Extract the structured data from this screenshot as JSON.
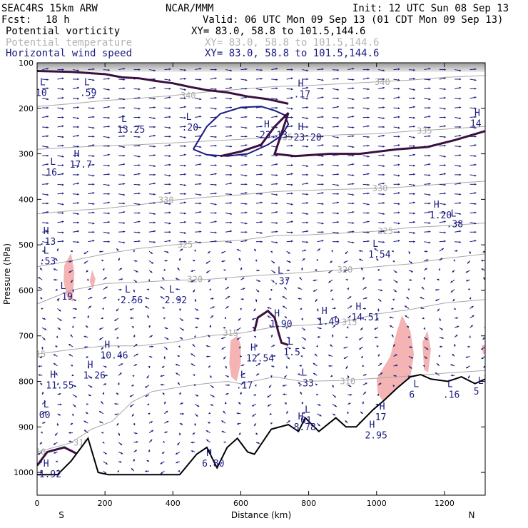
{
  "header": {
    "model": "SEAC4RS 15km ARW",
    "center": "NCAR/MMM",
    "init": "Init: 12 UTC Sun 08 Sep 13",
    "fcst_label": "Fcst:",
    "fcst_value": "18 h",
    "valid": "Valid: 06 UTC Mon 09 Sep 13 (01 CDT Mon 09 Sep 13)"
  },
  "fields": [
    {
      "name": "Potential vorticity",
      "xy": "XY=  83.0, 58.8 to 101.5,144.6",
      "color": "#000000"
    },
    {
      "name": "Potential temperature",
      "xy": "XY=  83.0, 58.8 to 101.5,144.6",
      "color": "#b4b4b4"
    },
    {
      "name": "Horizontal wind speed",
      "xy": "XY=  83.0, 58.8 to 101.5,144.6",
      "color": "#1a1a80"
    }
  ],
  "chart_data": {
    "type": "cross-section",
    "xlabel": "Distance (km)",
    "ylabel": "Pressure (hPa)",
    "x_ticks": [
      0,
      200,
      400,
      600,
      800,
      1000,
      1200
    ],
    "y_ticks": [
      100,
      200,
      300,
      400,
      500,
      600,
      700,
      800,
      900,
      1000
    ],
    "xlim": [
      0,
      1320
    ],
    "ylim": [
      1050,
      100
    ],
    "y_scale": "linear-pressure",
    "x_end_left": "S",
    "x_end_right": "N",
    "colors": {
      "pv": "#3a1040",
      "theta": "#a8a8a8",
      "wind": "#1a1a80",
      "pink": "#f4b4b4",
      "terrain": "#000000"
    },
    "terrain": [
      [
        0,
        1005
      ],
      [
        60,
        1005
      ],
      [
        100,
        975
      ],
      [
        150,
        925
      ],
      [
        180,
        1000
      ],
      [
        210,
        1005
      ],
      [
        420,
        1005
      ],
      [
        470,
        960
      ],
      [
        500,
        945
      ],
      [
        520,
        975
      ],
      [
        530,
        990
      ],
      [
        560,
        945
      ],
      [
        590,
        925
      ],
      [
        620,
        955
      ],
      [
        640,
        960
      ],
      [
        690,
        905
      ],
      [
        740,
        895
      ],
      [
        770,
        910
      ],
      [
        790,
        880
      ],
      [
        830,
        910
      ],
      [
        880,
        880
      ],
      [
        910,
        900
      ],
      [
        940,
        900
      ],
      [
        990,
        862
      ],
      [
        1020,
        843
      ],
      [
        1060,
        815
      ],
      [
        1100,
        790
      ],
      [
        1130,
        785
      ],
      [
        1160,
        795
      ],
      [
        1210,
        800
      ],
      [
        1250,
        790
      ],
      [
        1290,
        805
      ],
      [
        1320,
        795
      ]
    ],
    "theta_contours": [
      {
        "value": "310",
        "points": [
          [
            0,
            955
          ],
          [
            100,
            935
          ],
          [
            160,
            905
          ],
          [
            220,
            888
          ],
          [
            280,
            845
          ],
          [
            340,
            822
          ],
          [
            400,
            815
          ],
          [
            460,
            808
          ],
          [
            520,
            803
          ],
          [
            560,
            800
          ],
          [
            600,
            805
          ],
          [
            700,
            790
          ],
          [
            780,
            800
          ],
          [
            900,
            798
          ],
          [
            1000,
            793
          ],
          [
            1100,
            788
          ],
          [
            1200,
            782
          ],
          [
            1320,
            776
          ]
        ],
        "labels": [
          [
            130,
            1092
          ],
          [
            915,
            1018
          ],
          [
            3,
            1042
          ]
        ]
      },
      {
        "value": "315",
        "points": [
          [
            0,
            740
          ],
          [
            100,
            730
          ],
          [
            200,
            722
          ],
          [
            300,
            722
          ],
          [
            400,
            714
          ],
          [
            500,
            700
          ],
          [
            600,
            694
          ],
          [
            700,
            680
          ],
          [
            800,
            676
          ],
          [
            900,
            670
          ],
          [
            1000,
            652
          ],
          [
            1100,
            642
          ],
          [
            1200,
            628
          ],
          [
            1320,
            620
          ]
        ],
        "labels": [
          [
            570,
            1035
          ],
          [
            920,
            1032
          ],
          [
            3,
            1088
          ]
        ]
      },
      {
        "value": "320",
        "points": [
          [
            0,
            630
          ],
          [
            100,
            600
          ],
          [
            200,
            585
          ],
          [
            300,
            582
          ],
          [
            400,
            578
          ],
          [
            500,
            576
          ],
          [
            600,
            570
          ],
          [
            700,
            565
          ],
          [
            800,
            560
          ],
          [
            900,
            555
          ],
          [
            1000,
            548
          ],
          [
            1100,
            542
          ],
          [
            1200,
            530
          ],
          [
            1320,
            520
          ]
        ],
        "labels": [
          [
            465,
            1022
          ],
          [
            907,
            1041
          ]
        ]
      },
      {
        "value": "325",
        "points": [
          [
            0,
            548
          ],
          [
            100,
            535
          ],
          [
            200,
            520
          ],
          [
            300,
            508
          ],
          [
            400,
            500
          ],
          [
            500,
            494
          ],
          [
            600,
            490
          ],
          [
            700,
            480
          ],
          [
            800,
            478
          ],
          [
            900,
            474
          ],
          [
            1000,
            470
          ],
          [
            1100,
            462
          ],
          [
            1200,
            458
          ],
          [
            1320,
            452
          ]
        ],
        "labels": [
          [
            436,
            1079
          ],
          [
            1026,
            1025
          ]
        ]
      },
      {
        "value": "330",
        "points": [
          [
            0,
            432
          ],
          [
            100,
            425
          ],
          [
            200,
            420
          ],
          [
            300,
            412
          ],
          [
            400,
            402
          ],
          [
            500,
            395
          ],
          [
            600,
            390
          ],
          [
            700,
            383
          ],
          [
            800,
            380
          ],
          [
            900,
            378
          ],
          [
            1000,
            376
          ],
          [
            1100,
            372
          ],
          [
            1200,
            366
          ],
          [
            1320,
            360
          ]
        ],
        "labels": [
          [
            380,
            1025
          ],
          [
            1010,
            1007
          ]
        ]
      },
      {
        "value": "335",
        "points": [
          [
            0,
            290
          ],
          [
            100,
            286
          ],
          [
            200,
            282
          ],
          [
            300,
            280
          ],
          [
            400,
            276
          ],
          [
            500,
            272
          ],
          [
            600,
            268
          ],
          [
            700,
            264
          ],
          [
            800,
            262
          ],
          [
            900,
            258
          ],
          [
            1000,
            256
          ],
          [
            1100,
            250
          ],
          [
            1200,
            246
          ],
          [
            1320,
            240
          ]
        ],
        "labels": [
          [
            730,
            1074
          ],
          [
            1141,
            1066
          ]
        ]
      },
      {
        "value": "340",
        "points": [
          [
            0,
            196
          ],
          [
            100,
            190
          ],
          [
            200,
            183
          ],
          [
            300,
            178
          ],
          [
            400,
            172
          ],
          [
            500,
            164
          ],
          [
            600,
            158
          ],
          [
            700,
            152
          ],
          [
            800,
            150
          ],
          [
            900,
            146
          ],
          [
            1000,
            142
          ],
          [
            1100,
            138
          ],
          [
            1200,
            132
          ],
          [
            1320,
            128
          ]
        ],
        "labels": [
          [
            445,
            1038
          ],
          [
            1017,
            1062
          ]
        ]
      }
    ],
    "pv_contours": [
      {
        "value": "1.5",
        "points": [
          [
            0,
            118
          ],
          [
            100,
            120
          ],
          [
            200,
            125
          ],
          [
            250,
            132
          ],
          [
            300,
            134
          ],
          [
            350,
            140
          ],
          [
            400,
            145
          ],
          [
            450,
            153
          ],
          [
            500,
            160
          ],
          [
            560,
            165
          ],
          [
            620,
            174
          ],
          [
            680,
            180
          ],
          [
            740,
            190
          ]
        ]
      },
      {
        "value": "1.5",
        "points": [
          [
            540,
            305
          ],
          [
            600,
            295
          ],
          [
            660,
            280
          ],
          [
            700,
            240
          ],
          [
            740,
            210
          ],
          [
            700,
            300
          ],
          [
            760,
            305
          ],
          [
            860,
            300
          ],
          [
            950,
            300
          ],
          [
            1060,
            290
          ],
          [
            1150,
            285
          ],
          [
            1230,
            270
          ],
          [
            1320,
            250
          ]
        ]
      },
      {
        "value": "1.5",
        "points": [
          [
            0,
            985
          ],
          [
            30,
            955
          ],
          [
            80,
            945
          ],
          [
            120,
            960
          ]
        ]
      },
      {
        "value": "1.5",
        "points": [
          [
            640,
            690
          ],
          [
            650,
            660
          ],
          [
            680,
            645
          ],
          [
            700,
            660
          ],
          [
            710,
            690
          ],
          [
            720,
            715
          ],
          [
            740,
            720
          ]
        ]
      }
    ],
    "speed_contours": [
      {
        "value": "20",
        "points": [
          [
            460,
            290
          ],
          [
            500,
            240
          ],
          [
            540,
            212
          ],
          [
            600,
            198
          ],
          [
            660,
            196
          ],
          [
            700,
            205
          ],
          [
            730,
            215
          ],
          [
            740,
            235
          ],
          [
            720,
            260
          ],
          [
            680,
            280
          ],
          [
            620,
            300
          ],
          [
            560,
            305
          ],
          [
            500,
            302
          ],
          [
            460,
            290
          ]
        ]
      }
    ],
    "pink_regions": [
      [
        [
          80,
          545
        ],
        [
          100,
          518
        ],
        [
          110,
          560
        ],
        [
          105,
          625
        ],
        [
          88,
          615
        ],
        [
          78,
          580
        ]
      ],
      [
        [
          155,
          580
        ],
        [
          162,
          555
        ],
        [
          172,
          575
        ],
        [
          164,
          598
        ]
      ],
      [
        [
          570,
          710
        ],
        [
          590,
          700
        ],
        [
          600,
          720
        ],
        [
          600,
          760
        ],
        [
          588,
          800
        ],
        [
          572,
          790
        ],
        [
          566,
          760
        ]
      ],
      [
        [
          1000,
          795
        ],
        [
          1020,
          770
        ],
        [
          1040,
          745
        ],
        [
          1060,
          690
        ],
        [
          1075,
          655
        ],
        [
          1100,
          690
        ],
        [
          1110,
          740
        ],
        [
          1100,
          790
        ],
        [
          1080,
          810
        ],
        [
          1050,
          830
        ],
        [
          1020,
          845
        ],
        [
          1003,
          825
        ]
      ],
      [
        [
          1135,
          715
        ],
        [
          1150,
          688
        ],
        [
          1160,
          730
        ],
        [
          1152,
          780
        ],
        [
          1140,
          775
        ]
      ],
      [
        [
          1310,
          720
        ],
        [
          1320,
          720
        ],
        [
          1320,
          740
        ],
        [
          1313,
          740
        ]
      ]
    ],
    "shaded_upper": {
      "from_hpa": 100,
      "to_hpa_top": 120,
      "gradient": [
        "#bfbfbf",
        "#e6e6e6"
      ]
    },
    "extrema_labels": [
      {
        "t": "L",
        "x": 130,
        "p": 157,
        "v": ".59"
      },
      {
        "t": "L",
        "x": 0,
        "p": 157,
        "v": "10"
      },
      {
        "t": "H",
        "x": 760,
        "p": 160,
        "v": ".17"
      },
      {
        "t": "L",
        "x": 240,
        "p": 238,
        "v": "13.25"
      },
      {
        "t": "L",
        "x": 430,
        "p": 233,
        "v": ".20"
      },
      {
        "t": "H",
        "x": 660,
        "p": 250,
        "v": "23.13"
      },
      {
        "t": "H",
        "x": 760,
        "p": 255,
        "v": "23.20"
      },
      {
        "t": "H",
        "x": 1280,
        "p": 225,
        "v": "14"
      },
      {
        "t": "L",
        "x": 30,
        "p": 332,
        "v": "16"
      },
      {
        "t": "H",
        "x": 100,
        "p": 315,
        "v": "17.7"
      },
      {
        "t": "H",
        "x": 1160,
        "p": 426,
        "v": "1.20"
      },
      {
        "t": "L",
        "x": 1210,
        "p": 446,
        "v": ".38"
      },
      {
        "t": "H",
        "x": 10,
        "p": 484,
        "v": ".13"
      },
      {
        "t": "L",
        "x": 10,
        "p": 527,
        "v": ".53"
      },
      {
        "t": "L",
        "x": 980,
        "p": 512,
        "v": "1.54"
      },
      {
        "t": "L",
        "x": 700,
        "p": 571,
        "v": ".37"
      },
      {
        "t": "L",
        "x": 60,
        "p": 605,
        "v": ".19"
      },
      {
        "t": "L",
        "x": 250,
        "p": 613,
        "v": "2.56"
      },
      {
        "t": "L",
        "x": 380,
        "p": 613,
        "v": "2.92"
      },
      {
        "t": "H",
        "x": 690,
        "p": 665,
        "v": "1.90"
      },
      {
        "t": "H",
        "x": 830,
        "p": 660,
        "v": "1.49"
      },
      {
        "t": "H",
        "x": 930,
        "p": 650,
        "v": "14.51"
      },
      {
        "t": "H",
        "x": 190,
        "p": 734,
        "v": "10.46"
      },
      {
        "t": "H",
        "x": 140,
        "p": 778,
        "v": "1.26"
      },
      {
        "t": "H",
        "x": 620,
        "p": 740,
        "v": "12.54"
      },
      {
        "t": "L",
        "x": 730,
        "p": 727,
        "v": "1.5"
      },
      {
        "t": "L",
        "x": 590,
        "p": 800,
        "v": ".17"
      },
      {
        "t": "L",
        "x": 770,
        "p": 795,
        "v": ".33"
      },
      {
        "t": "H",
        "x": 30,
        "p": 800,
        "v": "11.55"
      },
      {
        "t": "L",
        "x": 1100,
        "p": 820,
        "v": "6"
      },
      {
        "t": "L",
        "x": 1200,
        "p": 820,
        "v": ".16"
      },
      {
        "t": "L",
        "x": 1290,
        "p": 813,
        "v": "5"
      },
      {
        "t": "L",
        "x": 10,
        "p": 865,
        "v": "00"
      },
      {
        "t": "L",
        "x": 780,
        "p": 877,
        "v": "01"
      },
      {
        "t": "H",
        "x": 760,
        "p": 892,
        "v": "8.78"
      },
      {
        "t": "H",
        "x": 1000,
        "p": 870,
        "v": "17"
      },
      {
        "t": "H",
        "x": 970,
        "p": 910,
        "v": "2.95"
      },
      {
        "t": "H",
        "x": 490,
        "p": 972,
        "v": "6.80"
      },
      {
        "t": "H",
        "x": 10,
        "p": 995,
        "v": "1.92"
      }
    ]
  }
}
